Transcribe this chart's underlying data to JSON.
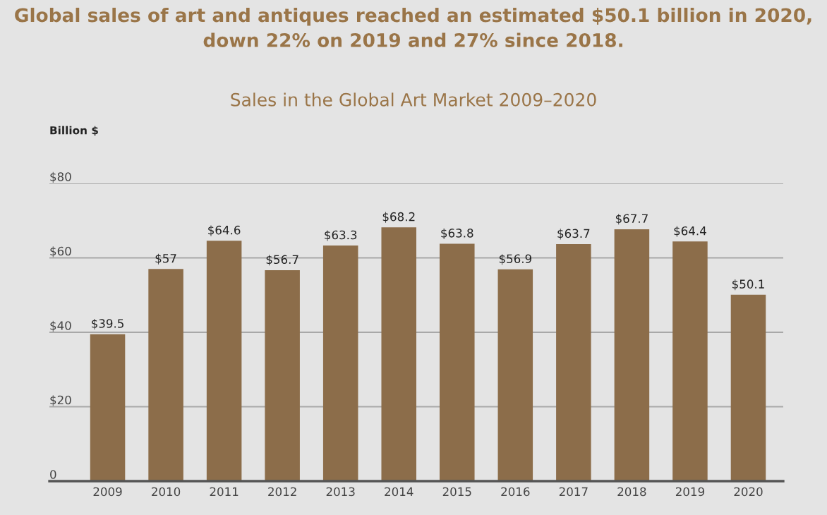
{
  "chart_data": {
    "type": "bar",
    "title": "Global sales of art and antiques reached an estimated $50.1 billion in 2020,\ndown 22% on 2019 and 27% since 2018.",
    "subtitle": "Sales in the Global Art Market 2009–2020",
    "ylabel": "Billion $",
    "categories": [
      "2009",
      "2010",
      "2011",
      "2012",
      "2013",
      "2014",
      "2015",
      "2016",
      "2017",
      "2018",
      "2019",
      "2020"
    ],
    "values": [
      39.5,
      57,
      64.6,
      56.7,
      63.3,
      68.2,
      63.8,
      56.9,
      63.7,
      67.7,
      64.4,
      50.1
    ],
    "value_labels": [
      "$39.5",
      "$57",
      "$64.6",
      "$56.7",
      "$63.3",
      "$68.2",
      "$63.8",
      "$56.9",
      "$63.7",
      "$67.7",
      "$64.4",
      "$50.1"
    ],
    "color": "#8c6d4a",
    "ylim": [
      0,
      80
    ],
    "yticks": [
      {
        "value": 0,
        "label": "0"
      },
      {
        "value": 20,
        "label": "$20"
      },
      {
        "value": 40,
        "label": "$40"
      },
      {
        "value": 60,
        "label": "$60"
      },
      {
        "value": 80,
        "label": "$80"
      }
    ],
    "grid": "y"
  }
}
